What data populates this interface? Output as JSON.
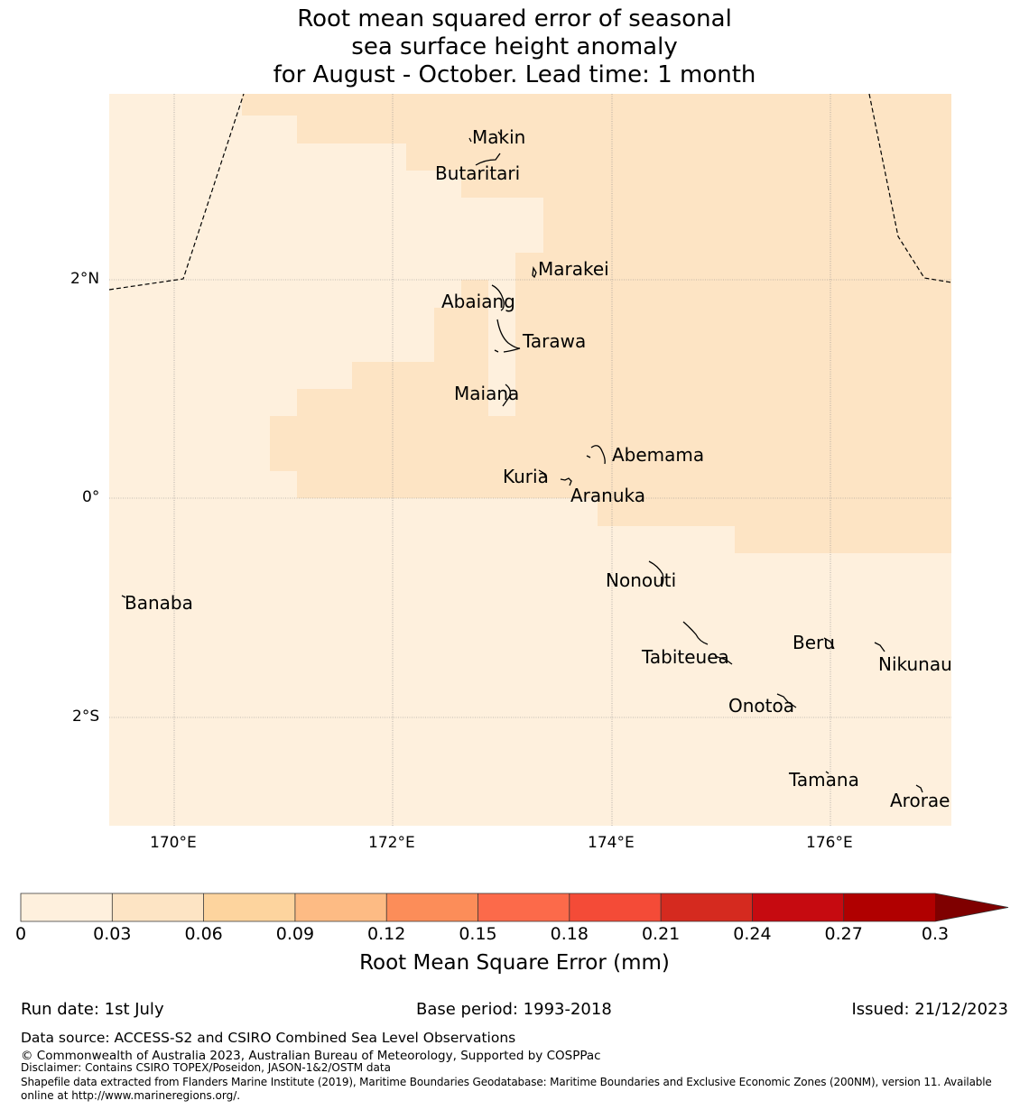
{
  "title": {
    "line1": "Root mean squared error of seasonal",
    "line2": "sea surface height anomaly",
    "line3": "for August - October. Lead time: 1 month"
  },
  "map": {
    "lon_range": [
      169.4,
      177.1
    ],
    "lat_range": [
      -3.0,
      3.7
    ],
    "x_ticks": [
      {
        "value": 170,
        "label": "170°E"
      },
      {
        "value": 172,
        "label": "172°E"
      },
      {
        "value": 174,
        "label": "174°E"
      },
      {
        "value": 176,
        "label": "176°E"
      }
    ],
    "y_ticks": [
      {
        "value": 2,
        "label": "2°N"
      },
      {
        "value": 0,
        "label": "0°"
      },
      {
        "value": -2,
        "label": "2°S"
      }
    ],
    "background_color": "#fef0dd",
    "band_color": "#fde4c4",
    "islands": [
      {
        "name": "Makin",
        "lon": 173.0,
        "lat": 3.3
      },
      {
        "name": "Butaritari",
        "lon": 172.8,
        "lat": 3.05
      },
      {
        "name": "Marakei",
        "lon": 173.3,
        "lat": 2.0
      },
      {
        "name": "Abaiang",
        "lon": 172.95,
        "lat": 1.8
      },
      {
        "name": "Tarawa",
        "lon": 173.05,
        "lat": 1.4
      },
      {
        "name": "Maiana",
        "lon": 173.0,
        "lat": 0.9
      },
      {
        "name": "Abemama",
        "lon": 173.87,
        "lat": 0.4
      },
      {
        "name": "Kuria",
        "lon": 173.4,
        "lat": 0.22
      },
      {
        "name": "Aranuka",
        "lon": 173.6,
        "lat": 0.18
      },
      {
        "name": "Nonouti",
        "lon": 174.4,
        "lat": -0.65
      },
      {
        "name": "Banaba",
        "lon": 169.53,
        "lat": -0.86
      },
      {
        "name": "Tabiteuea",
        "lon": 174.9,
        "lat": -1.4
      },
      {
        "name": "Beru",
        "lon": 175.98,
        "lat": -1.3
      },
      {
        "name": "Nikunau",
        "lon": 176.45,
        "lat": -1.35
      },
      {
        "name": "Onotoa",
        "lon": 175.6,
        "lat": -1.83
      },
      {
        "name": "Tamana",
        "lon": 175.98,
        "lat": -2.5
      },
      {
        "name": "Arorae",
        "lon": 176.82,
        "lat": -2.65
      }
    ]
  },
  "colorbar": {
    "boundaries": [
      0,
      0.03,
      0.06,
      0.09,
      0.12,
      0.15,
      0.18,
      0.21,
      0.24,
      0.27,
      0.3
    ],
    "colors": [
      "#fef0dd",
      "#fde4c4",
      "#fdd49e",
      "#fdbb84",
      "#fc8d59",
      "#fc6a4a",
      "#f44b37",
      "#d52a1f",
      "#c60a10",
      "#b00000"
    ],
    "extend_color": "#7f0000",
    "tick_labels": [
      "0",
      "0.03",
      "0.06",
      "0.09",
      "0.12",
      "0.15",
      "0.18",
      "0.21",
      "0.24",
      "0.27",
      "0.3"
    ],
    "title": "Root Mean Square Error (mm)"
  },
  "footer": {
    "run_date": "Run date: 1st July",
    "base_period": "Base period: 1993-2018",
    "issued": "Issued: 21/12/2023",
    "data_source": "Data source: ACCESS-S2 and CSIRO Combined Sea Level Observations",
    "copyright": "© Commonwealth of Australia 2023, Australian Bureau of Meteorology, Supported by COSPPac",
    "disclaimer": "Disclaimer: Contains CSIRO TOPEX/Poseidon, JASON-1&2/OSTM data",
    "shapefile_line1": "Shapefile data extracted from Flanders Marine Institute (2019), Maritime Boundaries Geodatabase: Maritime Boundaries and Exclusive Economic Zones (200NM), version 11. Available",
    "shapefile_line2": "online at http://www.marineregions.org/."
  }
}
